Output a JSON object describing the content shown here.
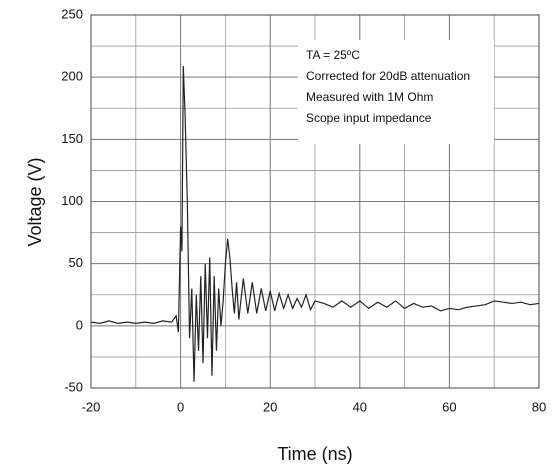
{
  "chart_data": {
    "type": "line",
    "xlabel": "Time (ns)",
    "ylabel": "Voltage (V)",
    "annotations": [
      "TA = 25ºC",
      "Corrected for 20dB attenuation",
      "Measured with 1M Ohm",
      "Scope input impedance"
    ],
    "x": [
      -20,
      -18,
      -16,
      -14,
      -12,
      -10,
      -8,
      -6,
      -4,
      -2,
      -1,
      -0.5,
      0,
      0.3,
      0.6,
      1,
      1.5,
      2,
      2.5,
      3,
      3.5,
      4,
      4.5,
      5,
      5.5,
      6,
      6.5,
      7,
      7.5,
      8,
      8.5,
      9,
      9.5,
      10,
      10.5,
      11,
      11.5,
      12,
      12.5,
      13,
      14,
      15,
      16,
      17,
      18,
      19,
      20,
      21,
      22,
      23,
      24,
      25,
      26,
      27,
      28,
      29,
      30,
      32,
      34,
      36,
      38,
      40,
      42,
      44,
      46,
      48,
      50,
      52,
      54,
      56,
      58,
      60,
      62,
      64,
      66,
      68,
      70,
      72,
      74,
      76,
      78,
      80
    ],
    "series": [
      {
        "name": "Voltage",
        "color": "#222222",
        "values": [
          3,
          2,
          4,
          2,
          3,
          2,
          3,
          2,
          4,
          3,
          8,
          -5,
          80,
          60,
          209,
          170,
          100,
          -10,
          30,
          -45,
          25,
          -20,
          40,
          -30,
          50,
          -10,
          55,
          -40,
          40,
          -20,
          30,
          0,
          20,
          50,
          70,
          55,
          30,
          10,
          35,
          5,
          38,
          10,
          35,
          10,
          30,
          12,
          28,
          12,
          26,
          14,
          25,
          14,
          22,
          15,
          25,
          13,
          20,
          18,
          15,
          20,
          15,
          20,
          14,
          19,
          15,
          20,
          14,
          18,
          15,
          16,
          12,
          14,
          13,
          15,
          16,
          17,
          20,
          19,
          18,
          19,
          17,
          18
        ]
      }
    ],
    "xlim": [
      -20,
      80
    ],
    "xticks": [
      -20,
      0,
      20,
      40,
      60,
      80
    ],
    "ylim": [
      -50,
      250
    ],
    "yticks": [
      -50,
      0,
      50,
      100,
      150,
      200,
      250
    ],
    "grid": true
  }
}
